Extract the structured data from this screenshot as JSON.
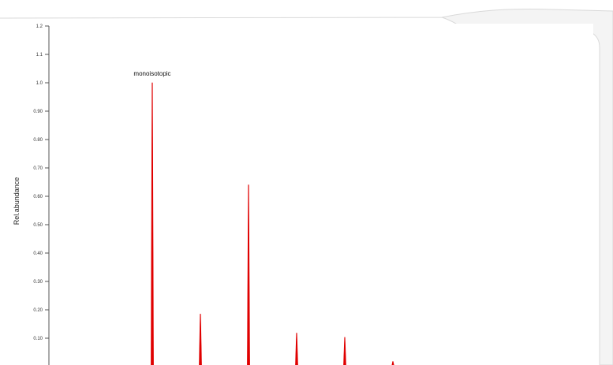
{
  "chart_data": {
    "type": "line",
    "title": "",
    "xlabel": "",
    "ylabel": "Rel.abundance",
    "ylim": [
      0,
      1.2
    ],
    "yticks": [
      "0.10",
      "0.20",
      "0.30",
      "0.40",
      "0.50",
      "0.60",
      "0.70",
      "0.80",
      "0.90",
      "1.0",
      "1.1",
      "1.2"
    ],
    "series": [
      {
        "color": "#e00000",
        "peaks": [
          1.0,
          0.185,
          0.64,
          0.118,
          0.103,
          0.018
        ]
      }
    ],
    "annotations": [
      {
        "text": "monoisotopic",
        "peak_index": 0
      }
    ],
    "grid": false
  }
}
